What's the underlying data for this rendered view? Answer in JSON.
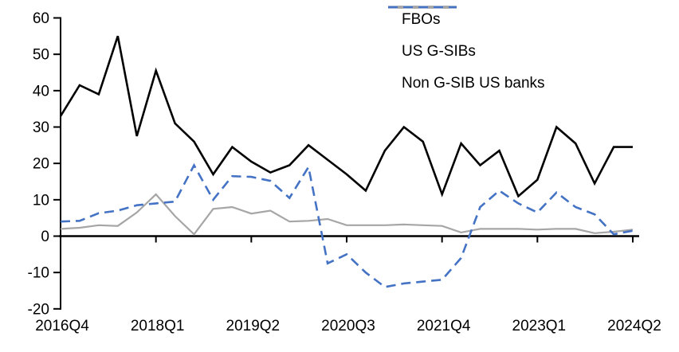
{
  "chart_data": {
    "type": "line",
    "title": "",
    "xlabel": "",
    "ylabel": "",
    "ylim": [
      -20,
      60
    ],
    "y_ticks": [
      60,
      50,
      40,
      30,
      20,
      10,
      0,
      -10,
      -20
    ],
    "x_tick_labels": [
      "2016Q4",
      "2018Q1",
      "2019Q2",
      "2020Q3",
      "2021Q4",
      "2023Q1",
      "2024Q2"
    ],
    "x_tick_every": 5,
    "grid": "off",
    "legend_position": "top-right-inside",
    "axis_color": "#000000",
    "categories": [
      "2016Q4",
      "2017Q1",
      "2017Q2",
      "2017Q3",
      "2017Q4",
      "2018Q1",
      "2018Q2",
      "2018Q3",
      "2018Q4",
      "2019Q1",
      "2019Q2",
      "2019Q3",
      "2019Q4",
      "2020Q1",
      "2020Q2",
      "2020Q3",
      "2020Q4",
      "2021Q1",
      "2021Q2",
      "2021Q3",
      "2021Q4",
      "2022Q1",
      "2022Q2",
      "2022Q3",
      "2022Q4",
      "2023Q1",
      "2023Q2",
      "2023Q3",
      "2023Q4",
      "2024Q1",
      "2024Q2"
    ],
    "series": [
      {
        "name": "FBOs",
        "color": "#000000",
        "style": "solid",
        "values": [
          33,
          41.5,
          39,
          55,
          27.5,
          45.5,
          31,
          26,
          17,
          24.5,
          20.5,
          17.5,
          19.5,
          25,
          21,
          17,
          12.5,
          23.5,
          30,
          26,
          11.5,
          25.5,
          19.5,
          23.5,
          11,
          15.5,
          30,
          25.5,
          14.5,
          24.5,
          24.5
        ]
      },
      {
        "name": "US G-SIBs",
        "color": "#A6A6A6",
        "style": "solid",
        "values": [
          2,
          2.3,
          3,
          2.8,
          6.5,
          11.5,
          5.5,
          0.5,
          7.5,
          8,
          6.2,
          7,
          4,
          4.2,
          4.7,
          3,
          3,
          3,
          3.2,
          3,
          2.8,
          1,
          2,
          2,
          2,
          1.8,
          2,
          2,
          0.8,
          1.2,
          1.8
        ]
      },
      {
        "name": "Non G-SIB US banks",
        "color": "#4472C4",
        "style": "dashed",
        "values": [
          4,
          4.2,
          6.3,
          7,
          8.5,
          9,
          9.5,
          19.5,
          10,
          16.5,
          16.3,
          15.2,
          10.5,
          19,
          -7.5,
          -5,
          -10,
          -14,
          -13,
          -12.5,
          -12,
          -6,
          8,
          12.5,
          9,
          6.5,
          12,
          8,
          6,
          0.5,
          1.5
        ]
      }
    ]
  }
}
